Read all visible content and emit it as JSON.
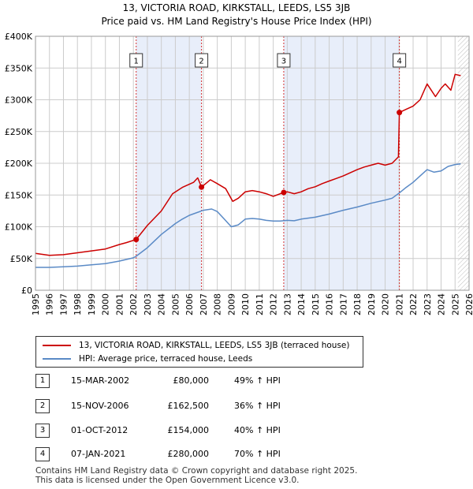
{
  "header": {
    "title_line1": "13, VICTORIA ROAD, KIRKSTALL, LEEDS, LS5 3JB",
    "title_line2": "Price paid vs. HM Land Registry's House Price Index (HPI)"
  },
  "chart_data": {
    "type": "line",
    "title": "13, VICTORIA ROAD, KIRKSTALL, LEEDS, LS5 3JB",
    "subtitle": "Price paid vs. HM Land Registry's House Price Index (HPI)",
    "xlabel": "",
    "ylabel": "",
    "xlim": [
      1995,
      2026
    ],
    "ylim": [
      0,
      400000
    ],
    "yticks": [
      0,
      50000,
      100000,
      150000,
      200000,
      250000,
      300000,
      350000,
      400000
    ],
    "ytick_labels": [
      "£0",
      "£50K",
      "£100K",
      "£150K",
      "£200K",
      "£250K",
      "£300K",
      "£350K",
      "£400K"
    ],
    "xticks": [
      1995,
      1996,
      1997,
      1998,
      1999,
      2000,
      2001,
      2002,
      2003,
      2004,
      2005,
      2006,
      2007,
      2008,
      2009,
      2010,
      2011,
      2012,
      2013,
      2014,
      2015,
      2016,
      2017,
      2018,
      2019,
      2020,
      2021,
      2022,
      2023,
      2024,
      2025,
      2026
    ],
    "grid": true,
    "future_hatch_from": 2025.2,
    "series": [
      {
        "name": "13, VICTORIA ROAD, KIRKSTALL, LEEDS, LS5 3JB (terraced house)",
        "color": "#cc0000",
        "x": [
          1995,
          1996,
          1997,
          1998,
          1999,
          2000,
          2001,
          2001.5,
          2002.2,
          2003,
          2004,
          2004.8,
          2005.5,
          2006.3,
          2006.6,
          2006.87,
          2007.5,
          2008,
          2008.6,
          2009.1,
          2009.5,
          2010,
          2010.5,
          2011,
          2011.5,
          2012,
          2012.75,
          2013,
          2013.5,
          2014,
          2014.5,
          2015,
          2015.5,
          2016,
          2016.5,
          2017,
          2017.5,
          2018,
          2018.5,
          2019,
          2019.5,
          2020,
          2020.5,
          2020.95,
          2021.02,
          2021.5,
          2022,
          2022.5,
          2022.8,
          2023,
          2023.3,
          2023.6,
          2024,
          2024.3,
          2024.7,
          2025,
          2025.4
        ],
        "values": [
          58000,
          55000,
          56000,
          59000,
          62000,
          65000,
          72000,
          75000,
          80000,
          102000,
          125000,
          152000,
          162000,
          170000,
          177000,
          162500,
          174000,
          168000,
          160000,
          140000,
          145000,
          155000,
          157000,
          155000,
          152000,
          148000,
          154000,
          155000,
          152000,
          155000,
          160000,
          163000,
          168000,
          172000,
          176000,
          180000,
          185000,
          190000,
          194000,
          197000,
          200000,
          197000,
          200000,
          210000,
          280000,
          285000,
          290000,
          300000,
          315000,
          325000,
          315000,
          305000,
          318000,
          325000,
          315000,
          340000,
          338000
        ]
      },
      {
        "name": "HPI: Average price, terraced house, Leeds",
        "color": "#5a8ac6",
        "x": [
          1995,
          1996,
          1997,
          1998,
          1999,
          2000,
          2001,
          2002,
          2002.2,
          2003,
          2004,
          2005,
          2005.5,
          2006,
          2007,
          2007.6,
          2008,
          2008.5,
          2009,
          2009.5,
          2010,
          2010.5,
          2011,
          2011.5,
          2012,
          2012.5,
          2013,
          2013.5,
          2014,
          2015,
          2016,
          2017,
          2018,
          2019,
          2020,
          2020.5,
          2021,
          2021.5,
          2022,
          2022.5,
          2023,
          2023.5,
          2024,
          2024.5,
          2025,
          2025.4
        ],
        "values": [
          36000,
          36000,
          37000,
          38000,
          40000,
          42000,
          46000,
          51000,
          53500,
          67000,
          88000,
          105000,
          112000,
          118000,
          126000,
          128000,
          124000,
          112000,
          100000,
          103000,
          112000,
          113000,
          112000,
          110000,
          109000,
          109000,
          110000,
          109500,
          112000,
          115000,
          120000,
          126000,
          131000,
          137000,
          142000,
          145000,
          153000,
          162000,
          170000,
          180000,
          190000,
          186000,
          188000,
          195000,
          198000,
          199000
        ]
      }
    ],
    "sales": [
      {
        "num": "1",
        "date": "15-MAR-2002",
        "x": 2002.2,
        "price_value": 80000,
        "price": "£80,000",
        "hpi": "49% ↑ HPI"
      },
      {
        "num": "2",
        "date": "15-NOV-2006",
        "x": 2006.87,
        "price_value": 162500,
        "price": "£162,500",
        "hpi": "36% ↑ HPI"
      },
      {
        "num": "3",
        "date": "01-OCT-2012",
        "x": 2012.75,
        "price_value": 154000,
        "price": "£154,000",
        "hpi": "40% ↑ HPI"
      },
      {
        "num": "4",
        "date": "07-JAN-2021",
        "x": 2021.02,
        "price_value": 280000,
        "price": "£280,000",
        "hpi": "70% ↑ HPI"
      }
    ]
  },
  "legend": {
    "property_label": "13, VICTORIA ROAD, KIRKSTALL, LEEDS, LS5 3JB (terraced house)",
    "hpi_label": "HPI: Average price, terraced house, Leeds"
  },
  "footer": {
    "line1": "Contains HM Land Registry data © Crown copyright and database right 2025.",
    "line2": "This data is licensed under the Open Government Licence v3.0."
  },
  "colors": {
    "property": "#cc0000",
    "hpi": "#5a8ac6",
    "shade": "#e8eefa",
    "grid": "#cccccc",
    "marker_line": "#cc0000"
  }
}
